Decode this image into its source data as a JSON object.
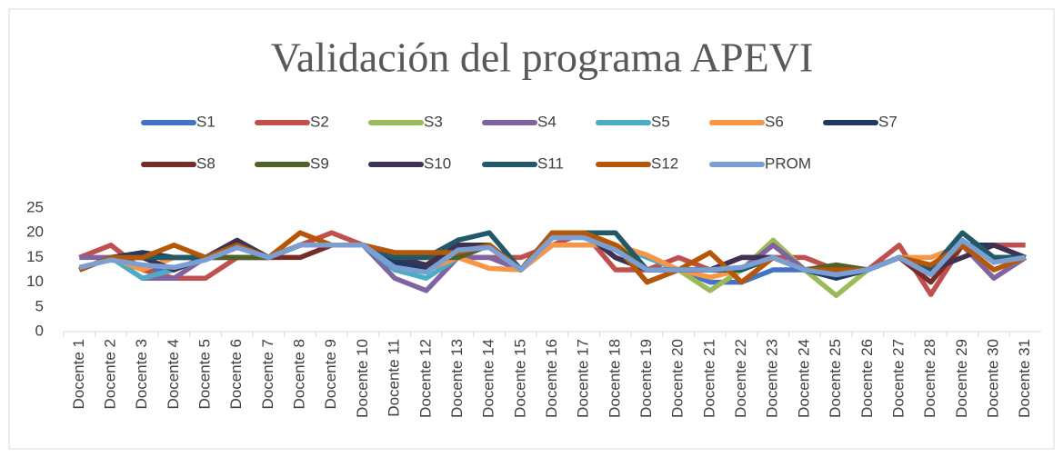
{
  "chart_data": {
    "type": "line",
    "title": "Validación del programa APEVI",
    "categories": [
      "Docente 1",
      "Docente 2",
      "Docente 3",
      "Docente 4",
      "Docente 5",
      "Docente 6",
      "Docente 7",
      "Docente 8",
      "Docente 9",
      "Docente 10",
      "Docente 11",
      "Docente 12",
      "Docente 13",
      "Docente 14",
      "Docente 15",
      "Docente 16",
      "Docente 17",
      "Docente 18",
      "Docente 19",
      "Docente 20",
      "Docente 21",
      "Docente 22",
      "Docente 23",
      "Docente 24",
      "Docente 25",
      "Docente 26",
      "Docente 27",
      "Docente 28",
      "Docente 29",
      "Docente 30",
      "Docente 31"
    ],
    "series": [
      {
        "name": "S1",
        "color": "#4472c4",
        "values": [
          12.5,
          15,
          12.5,
          12.5,
          15,
          15,
          15,
          17.5,
          17.5,
          17.5,
          12.5,
          12.5,
          15,
          17.5,
          12.5,
          20,
          20,
          15,
          12.5,
          12.5,
          10,
          10,
          12.5,
          12.5,
          12.5,
          12.5,
          15,
          12.5,
          17.5,
          15,
          15
        ]
      },
      {
        "name": "S2",
        "color": "#c0504d",
        "values": [
          15,
          17.5,
          12.5,
          10.8,
          10.8,
          15,
          15,
          17.5,
          20,
          17.5,
          15,
          15,
          15,
          15,
          15,
          17.5,
          20,
          12.5,
          12.5,
          15,
          12.5,
          12.5,
          15,
          15,
          12.5,
          12.5,
          17.5,
          7.5,
          17.5,
          17.5,
          17.5
        ]
      },
      {
        "name": "S3",
        "color": "#9bbb59",
        "values": [
          12.5,
          15,
          10.8,
          12.5,
          15,
          15,
          15,
          17.5,
          17.5,
          17.5,
          12.5,
          12.5,
          15,
          17.5,
          12.5,
          20,
          20,
          17.5,
          12.5,
          12.5,
          8.3,
          12.5,
          18.5,
          12.5,
          7.3,
          12.5,
          15,
          12.5,
          17.5,
          15,
          15
        ]
      },
      {
        "name": "S4",
        "color": "#8064a2",
        "values": [
          15,
          15,
          10.8,
          10.8,
          15,
          17.5,
          15,
          17.5,
          17.5,
          17.5,
          10.8,
          8.3,
          15,
          15,
          12.5,
          20,
          20,
          15,
          12.5,
          12.5,
          12.5,
          12.5,
          17.5,
          12.5,
          12.5,
          12.5,
          15,
          12.5,
          17.5,
          10.8,
          15
        ]
      },
      {
        "name": "S5",
        "color": "#4bacc6",
        "values": [
          12.5,
          15,
          10.8,
          12.5,
          15,
          17.5,
          15,
          17.5,
          17.5,
          17.5,
          12.5,
          10.8,
          15,
          17.5,
          12.5,
          17.5,
          17.5,
          17.5,
          15,
          12.5,
          12.5,
          12.5,
          15,
          12.5,
          12.5,
          12.5,
          15,
          12.5,
          17.5,
          15,
          15
        ]
      },
      {
        "name": "S6",
        "color": "#f79646",
        "values": [
          12.5,
          15,
          12.5,
          15,
          15,
          17.5,
          15,
          17.5,
          17.5,
          17.5,
          15,
          12.5,
          15,
          12.8,
          12.5,
          17.5,
          17.5,
          17.5,
          15.5,
          12.5,
          11,
          12.5,
          15,
          12.5,
          12.5,
          12.5,
          15,
          15,
          17.5,
          12.5,
          15
        ]
      },
      {
        "name": "S7",
        "color": "#1f3864",
        "values": [
          12.5,
          15,
          16,
          15,
          15,
          17.5,
          15,
          17.5,
          17.5,
          17.5,
          14,
          13,
          17.5,
          17.5,
          12.5,
          20,
          20,
          15,
          12.5,
          12.5,
          12.5,
          12.5,
          15,
          12.5,
          10.8,
          12.5,
          15,
          12.5,
          17.5,
          17.5,
          15
        ]
      },
      {
        "name": "S8",
        "color": "#772c2a",
        "values": [
          12.5,
          15,
          15,
          15,
          15,
          15,
          15,
          15,
          17.5,
          17.5,
          15,
          15,
          15,
          17.5,
          12.5,
          20,
          20,
          17.5,
          10,
          12.5,
          12.5,
          15,
          15,
          12.5,
          12.5,
          12.5,
          15,
          10,
          17.5,
          15,
          15
        ]
      },
      {
        "name": "S9",
        "color": "#4f6228",
        "values": [
          12.5,
          15,
          15,
          15,
          15,
          15,
          15,
          17.5,
          17.5,
          17.5,
          15,
          15,
          15,
          17.5,
          12.5,
          20,
          20,
          17.5,
          12.5,
          12.5,
          12.5,
          12.5,
          15,
          12.5,
          13.5,
          12.5,
          15,
          12.5,
          17.5,
          15,
          15
        ]
      },
      {
        "name": "S10",
        "color": "#3f3151",
        "values": [
          12.5,
          15,
          15,
          12.5,
          15,
          18.5,
          15,
          17.5,
          17.5,
          17.5,
          15,
          13.5,
          17.5,
          17.5,
          12.5,
          20,
          20,
          15,
          12.5,
          12.5,
          12.5,
          15,
          15,
          12.5,
          12.5,
          12.5,
          15,
          12.5,
          15,
          17.5,
          15
        ]
      },
      {
        "name": "S11",
        "color": "#215968",
        "values": [
          12.5,
          15,
          15,
          15,
          15,
          17.5,
          15,
          17.5,
          17.5,
          17.5,
          15,
          15,
          18.5,
          20,
          12.5,
          20,
          20,
          20,
          12.5,
          12.5,
          12.5,
          12.5,
          15,
          12.5,
          12.5,
          12.5,
          15,
          12.5,
          20,
          15,
          15
        ]
      },
      {
        "name": "S12",
        "color": "#b65708",
        "values": [
          12.5,
          15,
          15,
          17.5,
          15,
          17.5,
          15,
          20,
          17.5,
          17.5,
          16,
          16,
          16,
          17.5,
          12.5,
          20,
          20,
          17.5,
          10,
          12.5,
          16,
          10,
          15,
          12.5,
          12.5,
          12.5,
          15,
          13.5,
          17.5,
          12.5,
          15
        ]
      },
      {
        "name": "PROM",
        "color": "#7c9fd3",
        "values": [
          13,
          14.5,
          13.5,
          13,
          14.5,
          17,
          15,
          17.5,
          17.5,
          17.5,
          13,
          12,
          16.5,
          17,
          12.5,
          19,
          19,
          16.5,
          12.5,
          12.5,
          12.5,
          13,
          15,
          12.5,
          11.5,
          12.5,
          15,
          11.5,
          18.5,
          14,
          15
        ]
      }
    ],
    "ylim": [
      0,
      25
    ],
    "yticks": [
      0,
      5,
      10,
      15,
      20,
      25
    ],
    "legend": "top"
  }
}
